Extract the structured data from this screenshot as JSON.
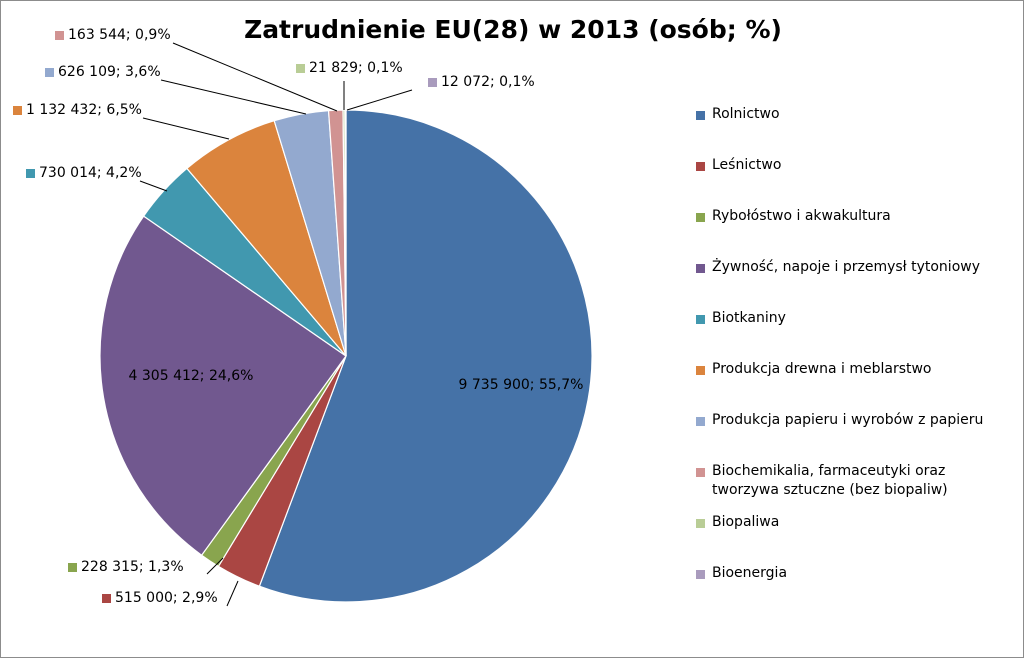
{
  "chart_data": {
    "type": "pie",
    "title": "Zatrudnienie EU(28) w 2013 (osób; %)",
    "legend_position": "right",
    "slices": [
      {
        "name": "Rolnictwo",
        "value": 9735900,
        "label": "9 735 900; 55,7%",
        "color": "#4572A7"
      },
      {
        "name": "Leśnictwo",
        "value": 515000,
        "label": "515 000; 2,9%",
        "color": "#AA4643"
      },
      {
        "name": "Rybołóstwo i akwakultura",
        "value": 228315,
        "label": "228 315; 1,3%",
        "color": "#89A54E"
      },
      {
        "name": "Żywność, napoje i przemysł tytoniowy",
        "value": 4305412,
        "label": "4 305 412; 24,6%",
        "color": "#71588F"
      },
      {
        "name": "Biotkaniny",
        "value": 730014,
        "label": "730 014; 4,2%",
        "color": "#4198AF"
      },
      {
        "name": "Produkcja drewna i meblarstwo",
        "value": 1132432,
        "label": "1 132 432; 6,5%",
        "color": "#DB843D"
      },
      {
        "name": "Produkcja papieru i wyrobów z papieru",
        "value": 626109,
        "label": "626 109; 3,6%",
        "color": "#93A9CF"
      },
      {
        "name": "Biochemikalia, farmaceutyki oraz tworzywa sztuczne (bez biopaliw)",
        "value": 163544,
        "label": "163 544; 0,9%",
        "color": "#D19392"
      },
      {
        "name": "Biopaliwa",
        "value": 21829,
        "label": "21 829; 0,1%",
        "color": "#B9CD96"
      },
      {
        "name": "Bioenergia",
        "value": 12072,
        "label": "12 072; 0,1%",
        "color": "#A99BBD"
      }
    ]
  }
}
